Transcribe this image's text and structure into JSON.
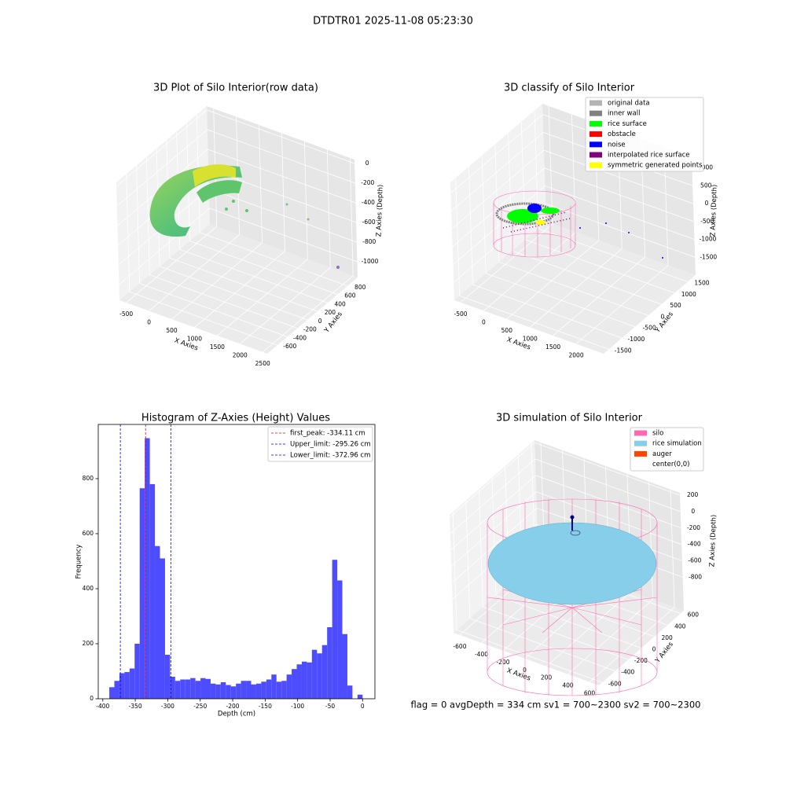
{
  "title": "DTDTR01 2025-11-08 05:23:30",
  "footer": "flag = 0     avgDepth = 334 cm  sv1 = 700~2300  sv2 = 700~2300",
  "chart_data": [
    {
      "type": "scatter3d",
      "title": "3D Plot of Silo Interior(row data)",
      "x_label": "X Axies",
      "y_label": "Y Axies",
      "z_label": "Z Axies (Depth)",
      "xlim": [
        -650,
        2600
      ],
      "ylim": [
        -800,
        1000
      ],
      "zlim": [
        -1160,
        40
      ],
      "xticks": [
        -500,
        0,
        500,
        1000,
        1500,
        2000,
        2500
      ],
      "yticks": [
        -600,
        -400,
        -200,
        0,
        200,
        400,
        600,
        800
      ],
      "zticks": [
        -1000,
        -800,
        -600,
        -400,
        -200,
        0
      ]
    },
    {
      "type": "scatter3d",
      "title": "3D classify of Silo Interior",
      "x_label": "X Axies",
      "y_label": "Y Axies",
      "z_label": "Z Axies (Depth)",
      "xlim": [
        -636,
        2594
      ],
      "ylim": [
        -1700,
        1800
      ],
      "zlim": [
        -2000,
        1300
      ],
      "xticks": [
        -500,
        0,
        500,
        1000,
        1500,
        2000
      ],
      "yticks": [
        -1500,
        -1000,
        -500,
        0,
        500,
        1000,
        1500
      ],
      "zticks": [
        -1500,
        -1000,
        -500,
        0,
        500,
        1000
      ],
      "legend": "upper right",
      "series": [
        {
          "name": "original data",
          "color": "#b3b3b3"
        },
        {
          "name": "inner wall",
          "color": "#808080"
        },
        {
          "name": "rice surface",
          "color": "#00ff00"
        },
        {
          "name": "obstacle",
          "color": "#ff0000"
        },
        {
          "name": "noise",
          "color": "#0000ff"
        },
        {
          "name": "interpolated rice surface",
          "color": "#800080"
        },
        {
          "name": "symmetric generated points",
          "color": "#ffff00"
        }
      ]
    },
    {
      "type": "histogram",
      "title": "Histogram of Z-Axies (Height) Values",
      "x_label": "Depth (cm)",
      "y_label": "Frequency",
      "color": "#4d4dff",
      "bins": [
        -390,
        -382.2,
        -374.4,
        -366.6,
        -358.8,
        -351,
        -343.2,
        -335.4,
        -327.6,
        -319.8,
        -312,
        -304.2,
        -296.4,
        -288.6,
        -280.8,
        -273,
        -265.2,
        -257.4,
        -249.6,
        -241.8,
        -234,
        -226.2,
        -218.4,
        -210.6,
        -202.8,
        -195,
        -187.2,
        -179.4,
        -171.6,
        -163.8,
        -156,
        -148.2,
        -140.4,
        -132.6,
        -124.8,
        -117,
        -109.2,
        -101.4,
        -93.6,
        -85.8,
        -78,
        -70.2,
        -62.4,
        -54.6,
        -46.8,
        -39,
        -31.2,
        -23.4,
        -15.6,
        -7.8,
        0
      ],
      "counts": [
        42,
        65,
        93,
        97,
        110,
        200,
        765,
        947,
        780,
        555,
        510,
        160,
        80,
        65,
        70,
        70,
        75,
        65,
        75,
        72,
        55,
        52,
        60,
        50,
        45,
        55,
        65,
        65,
        52,
        55,
        62,
        70,
        88,
        62,
        65,
        88,
        108,
        125,
        135,
        132,
        178,
        165,
        195,
        260,
        505,
        430,
        235,
        48,
        0,
        15
      ],
      "xlim": [
        -407,
        19
      ],
      "ylim": [
        0,
        997
      ],
      "xticks": [
        -400,
        -350,
        -300,
        -250,
        -200,
        -150,
        -100,
        -50,
        0
      ],
      "yticks": [
        0,
        200,
        400,
        600,
        800
      ],
      "legend": "upper right",
      "lines": [
        {
          "name": "first_peak: -334.11 cm",
          "value": -334.11,
          "color": "#ff0000"
        },
        {
          "name": "Upper_limit: -295.26 cm",
          "value": -295.26,
          "color": "#0000ff"
        },
        {
          "name": "Lower_limit: -372.96 cm",
          "value": -372.96,
          "color": "#0000ff"
        }
      ]
    },
    {
      "type": "scatter3d",
      "title": "3D simulation of Silo Interior",
      "x_label": "X Axies",
      "y_label": "Y Axies",
      "z_label": "Z Axies (Depth)",
      "xlim": [
        -658,
        687
      ],
      "ylim": [
        -650,
        650
      ],
      "zlim": [
        -1210,
        230
      ],
      "xticks": [
        -600,
        -400,
        -200,
        0,
        200,
        400,
        600
      ],
      "yticks": [
        -600,
        -400,
        -200,
        0,
        200,
        400,
        600
      ],
      "zticks": [
        -800,
        -600,
        -400,
        -200,
        0,
        200
      ],
      "legend": "upper right",
      "series": [
        {
          "name": "silo",
          "color": "#ff69b4"
        },
        {
          "name": "rice simulation",
          "color": "#87ceeb"
        },
        {
          "name": "auger",
          "color": "#ff4500"
        },
        {
          "name": "center(0,0)",
          "color": "#ffffff"
        }
      ]
    }
  ]
}
